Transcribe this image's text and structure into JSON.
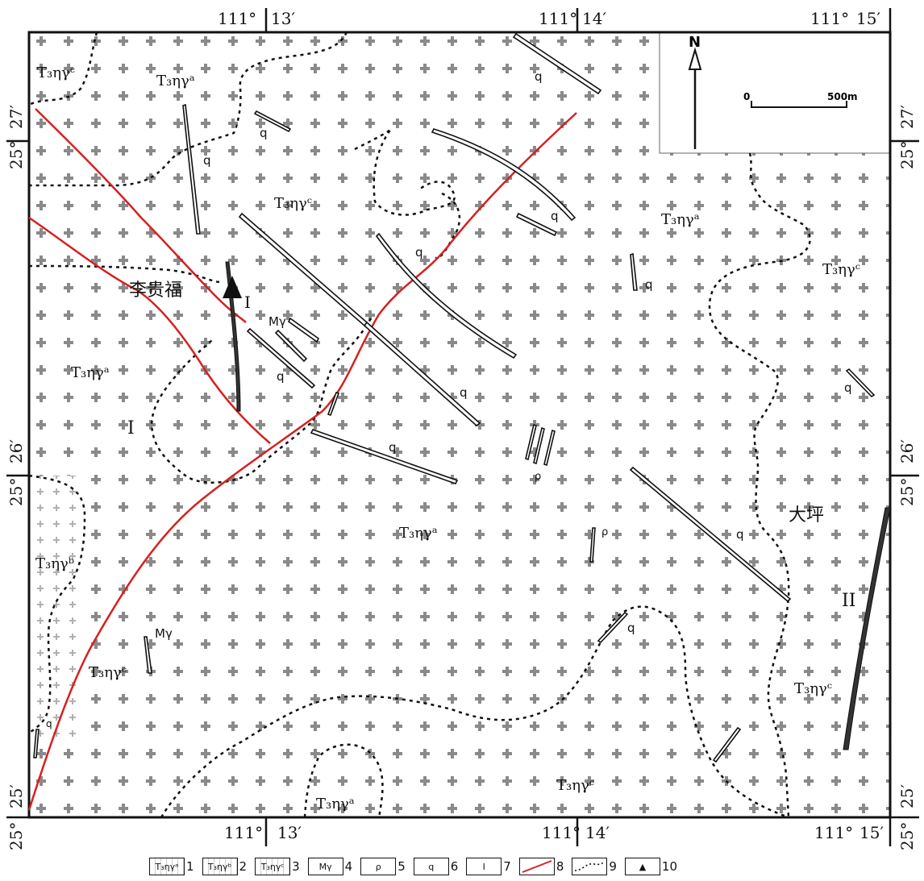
{
  "coords": {
    "top": [
      "111°",
      "13′",
      "111°",
      "14′",
      "111°",
      "15′"
    ],
    "bottom": [
      "111°",
      "13′",
      "111°",
      "14′",
      "111°",
      "15′"
    ],
    "left": [
      "27′",
      "25°",
      "26′",
      "25°",
      "25′",
      "25°"
    ],
    "right": [
      "27′",
      "25°",
      "26′",
      "25°",
      "25′",
      "25°"
    ]
  },
  "scale": {
    "north": "N",
    "zero": "0",
    "distance": "500m"
  },
  "unit_labels": {
    "nw_c": "T₃ηγᶜ",
    "upper_a": "T₃ηγᵃ",
    "center_c": "T₃ηγᶜ",
    "ne_a": "T₃ηγᵃ",
    "east_c": "T₃ηγᶜ",
    "west_a": "T₃ηγᵃ",
    "south_a": "T₃ηγᵃ",
    "west_b": "T₃ηγᵇ",
    "sw_c": "T₃ηγᶜ",
    "se_c": "T₃ηγᶜ",
    "bottom_c": "T₃ηγᶜ",
    "bottom_a": "T₃ηγᵃ"
  },
  "place_names": {
    "liguifu": "李贵福",
    "daping": "大坪"
  },
  "orebody_labels": {
    "one": "I",
    "one_b": "I",
    "two": "II"
  },
  "dike_labels": {
    "q": "q",
    "my": "Mγ",
    "rho": "ρ"
  },
  "legend": [
    {
      "symbol": "T₃ηγᵃ",
      "num": "1"
    },
    {
      "symbol": "T₃ηγᵇ",
      "num": "2"
    },
    {
      "symbol": "T₃ηγᶜ",
      "num": "3"
    },
    {
      "symbol": "Mγ",
      "num": "4"
    },
    {
      "symbol": "ρ",
      "num": "5"
    },
    {
      "symbol": "q",
      "num": "6"
    },
    {
      "symbol": "I",
      "num": "7"
    },
    {
      "symbol": "",
      "num": "8"
    },
    {
      "symbol": "",
      "num": "9"
    },
    {
      "symbol": "▲",
      "num": "10"
    }
  ],
  "colors": {
    "fault": "#d62020",
    "cross": "#8a8a8a",
    "frame": "#111111"
  }
}
